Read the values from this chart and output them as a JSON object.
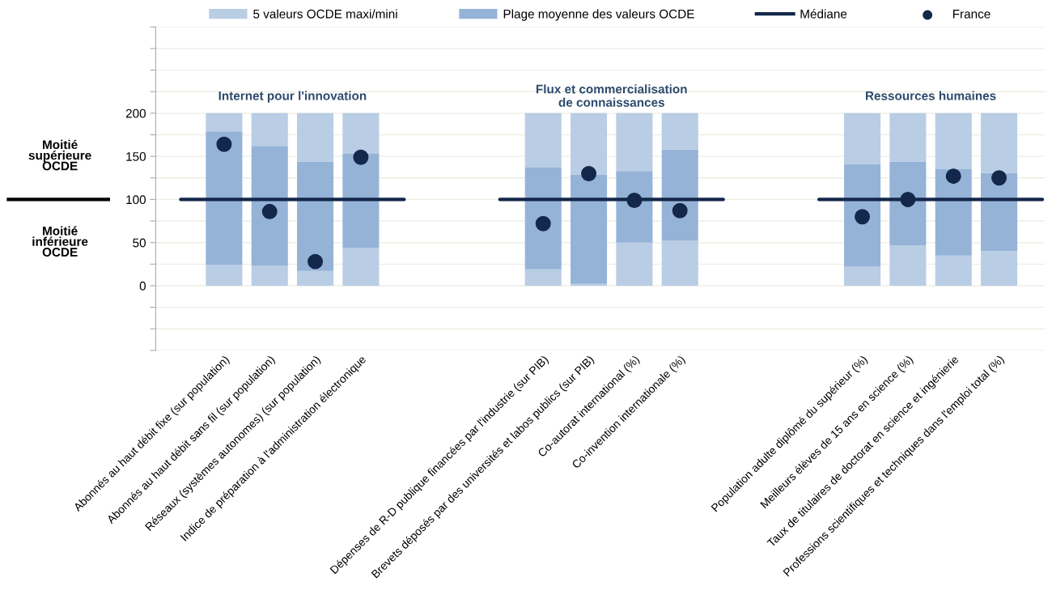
{
  "chart_data": {
    "type": "bar",
    "stacked": true,
    "categories": [
      "Abonnés au haut débit fixe (sur population)",
      "Abonnés au haut débit sans fil (sur population)",
      "Réseaux (systèmes autonomes) (sur population)",
      "Indice de préparation à l'administration électronique",
      null,
      null,
      null,
      "Dépenses de R-D publique financées par l'industrie (sur PIB)",
      "Brevets déposés par des universités et labos publics (sur PIB)",
      "Co-autorat international (%)",
      "Co-invention internationale (%)",
      null,
      null,
      null,
      "Population adulte diplômé du supérieur (%)",
      "Meilleurs élèves de 15 ans en science (%)",
      "Taux de titulaires de doctorat en science et ingénierie",
      "Professions scientifiques et techniques dans l'emploi total (%)"
    ],
    "series": [
      {
        "name": "5 valeurs OCDE maxi/mini",
        "color": "#b9cde5",
        "values": [
          24,
          23,
          17,
          44,
          null,
          null,
          null,
          19,
          2,
          50,
          52,
          null,
          null,
          null,
          22,
          47,
          35,
          40
        ]
      },
      {
        "name": "Plage moyenne des valeurs OCDE",
        "color": "#95b3d7",
        "values": [
          155,
          139,
          127,
          109,
          null,
          null,
          null,
          118,
          127,
          83,
          106,
          null,
          null,
          null,
          119,
          97,
          100,
          91
        ]
      },
      {
        "color": "#b9cde5",
        "values": [
          21,
          38,
          56,
          47,
          null,
          null,
          null,
          63,
          71,
          67,
          42,
          null,
          null,
          null,
          59,
          56,
          65,
          69
        ]
      },
      {
        "name": "Médiane",
        "type": "line",
        "color": "#14284b",
        "values": [
          100,
          100,
          100,
          100,
          null,
          null,
          null,
          100,
          100,
          100,
          100,
          null,
          null,
          null,
          100,
          100,
          100,
          100
        ]
      },
      {
        "name": "France",
        "type": "scatter",
        "marker": "circle",
        "color": "#14284b",
        "values": [
          164,
          86,
          28,
          149,
          null,
          null,
          null,
          72,
          130,
          99,
          87,
          null,
          null,
          null,
          80,
          100,
          127,
          125
        ]
      }
    ],
    "ylim": [
      -75,
      300
    ],
    "yticks": [
      {
        "value": -75,
        "label": null
      },
      {
        "value": -50,
        "label": null
      },
      {
        "value": -25,
        "label": null
      },
      0,
      {
        "value": 25,
        "label": null
      },
      50,
      {
        "value": 75,
        "label": null
      },
      100,
      {
        "value": 125,
        "label": null
      },
      150,
      {
        "value": 175,
        "label": null
      },
      200,
      {
        "value": 225,
        "label": null
      },
      {
        "value": 250,
        "label": null
      },
      {
        "value": 275,
        "label": null
      },
      {
        "value": 300,
        "label": null
      }
    ],
    "grid": "y",
    "legend": "top",
    "annotations": [
      "Internet pour l'innovation",
      "Flux et commercialisation\nde connaissances",
      "Ressources humaines",
      "Moitié\nsupérieure\nOCDE",
      "Moitié\ninférieure\nOCDE"
    ]
  }
}
